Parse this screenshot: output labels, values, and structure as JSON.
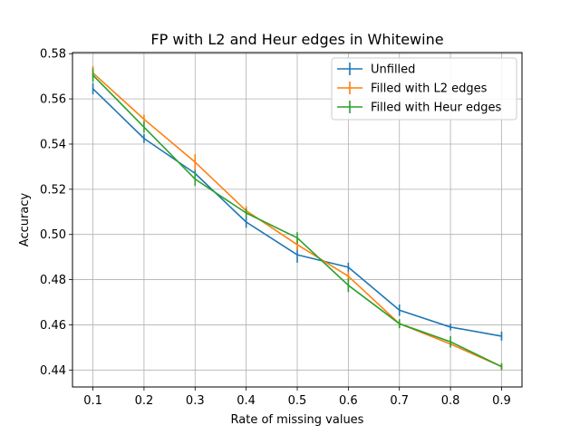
{
  "chart_data": {
    "type": "line",
    "title": "FP with L2 and Heur edges in Whitewine",
    "xlabel": "Rate of missing values",
    "ylabel": "Accuracy",
    "x": [
      0.1,
      0.2,
      0.3,
      0.4,
      0.5,
      0.6,
      0.7,
      0.8,
      0.9
    ],
    "xlim": [
      0.06,
      0.94
    ],
    "ylim": [
      0.4325,
      0.5805
    ],
    "xticks": [
      "0.1",
      "0.2",
      "0.3",
      "0.4",
      "0.5",
      "0.6",
      "0.7",
      "0.8",
      "0.9"
    ],
    "yticks": [
      "0.44",
      "0.46",
      "0.48",
      "0.50",
      "0.52",
      "0.54",
      "0.56",
      "0.58"
    ],
    "grid": true,
    "legend_position": "top-right",
    "series": [
      {
        "name": "Unfilled",
        "color": "#1f77b4",
        "values": [
          0.5645,
          0.5425,
          0.527,
          0.5055,
          0.491,
          0.4855,
          0.4665,
          0.459,
          0.455
        ],
        "errors": [
          0.0025,
          0.002,
          0.002,
          0.0025,
          0.0035,
          0.002,
          0.0025,
          0.0015,
          0.002
        ]
      },
      {
        "name": "Filled with L2 edges",
        "color": "#ff7f0e",
        "values": [
          0.5715,
          0.551,
          0.532,
          0.5105,
          0.4955,
          0.4815,
          0.4605,
          0.4515,
          0.4415
        ],
        "errors": [
          0.003,
          0.002,
          0.0035,
          0.002,
          0.0025,
          0.002,
          0.0015,
          0.0015,
          0.0015
        ]
      },
      {
        "name": "Filled with Heur edges",
        "color": "#2ca02c",
        "values": [
          0.5705,
          0.5475,
          0.5245,
          0.5095,
          0.4985,
          0.4775,
          0.4605,
          0.4525,
          0.4415
        ],
        "errors": [
          0.003,
          0.0025,
          0.003,
          0.002,
          0.0025,
          0.003,
          0.002,
          0.0025,
          0.0015
        ]
      }
    ]
  }
}
